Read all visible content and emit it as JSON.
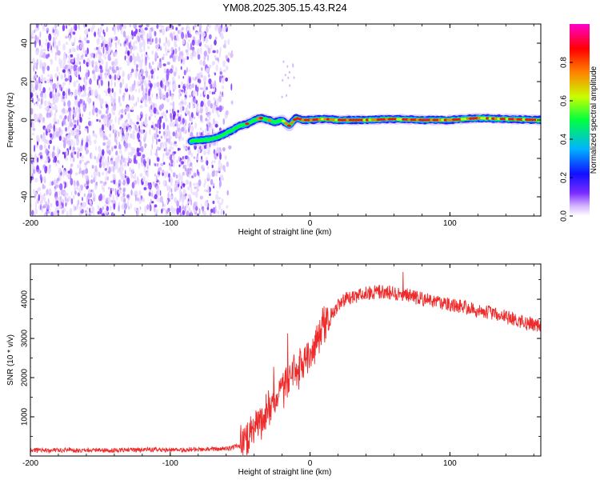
{
  "title": "YM08.2025.305.15.43.R24",
  "colors": {
    "snr_line": "#ee2b2b",
    "spectrum_colormap": [
      "#ffffff",
      "#d6b8ff",
      "#7b2cff",
      "#1010ff",
      "#00b4ff",
      "#00ff40",
      "#c8ff00",
      "#ff8000",
      "#ff0000",
      "#ff00cc"
    ]
  },
  "chart_data": [
    {
      "type": "heatmap",
      "name": "spectrogram",
      "title": "YM08.2025.305.15.43.R24",
      "xlabel": "Height of straight line (km)",
      "ylabel": "Frequency (Hz)",
      "xlim": [
        -200,
        165
      ],
      "ylim": [
        -50,
        50
      ],
      "x_ticks": [
        -200,
        -100,
        0,
        100
      ],
      "y_ticks": [
        -40,
        -20,
        0,
        20,
        40
      ],
      "x_tick_labels": [
        "-200",
        "-100",
        "0",
        "100"
      ],
      "y_tick_labels": [
        "-40",
        "-20",
        "0",
        "20",
        "40"
      ],
      "colorbar": {
        "label": "Normalized spectral amplitude",
        "range": [
          0.0,
          1.0
        ],
        "ticks": [
          0.0,
          0.2,
          0.4,
          0.6,
          0.8
        ],
        "tick_labels": [
          "0.0",
          "0.2",
          "0.4",
          "0.6",
          "0.8"
        ]
      },
      "noise_region": {
        "x_range": [
          -200,
          -55
        ],
        "freq_range": [
          -50,
          50
        ]
      },
      "signal_ridge": {
        "x": [
          -85,
          -70,
          -60,
          -50,
          -45,
          -40,
          -35,
          -30,
          -25,
          -20,
          -15,
          -10,
          -5,
          0,
          10,
          20,
          40,
          60,
          80,
          100,
          120,
          140,
          165
        ],
        "freq": [
          -11,
          -10,
          -7,
          -3,
          -2,
          0,
          1,
          0,
          -1,
          0,
          -3,
          1,
          0,
          0,
          0.5,
          0,
          0,
          0.5,
          0,
          0,
          1,
          0.5,
          0
        ]
      }
    },
    {
      "type": "line",
      "name": "snr",
      "xlabel": "Height of straight line (km)",
      "ylabel": "SNR (10 * v/v)",
      "xlim": [
        -200,
        165
      ],
      "ylim": [
        0,
        4900
      ],
      "x_ticks": [
        -200,
        -100,
        0,
        100
      ],
      "y_ticks": [
        1000,
        2000,
        3000,
        4000
      ],
      "x_tick_labels": [
        "-200",
        "-100",
        "0",
        "100"
      ],
      "y_tick_labels": [
        "1000",
        "2000",
        "3000",
        "4000"
      ],
      "series": [
        {
          "name": "SNR",
          "x": [
            -200,
            -150,
            -100,
            -60,
            -50,
            -45,
            -40,
            -35,
            -30,
            -25,
            -20,
            -15,
            -10,
            -5,
            0,
            5,
            10,
            15,
            20,
            25,
            30,
            40,
            50,
            60,
            70,
            80,
            90,
            100,
            110,
            120,
            130,
            140,
            150,
            160,
            165
          ],
          "y": [
            150,
            150,
            160,
            180,
            260,
            400,
            600,
            850,
            1150,
            1450,
            1700,
            1900,
            2150,
            2400,
            2600,
            2900,
            3300,
            3600,
            3850,
            4000,
            4050,
            4150,
            4200,
            4150,
            4100,
            4000,
            3950,
            3850,
            3800,
            3700,
            3650,
            3550,
            3450,
            3350,
            3300
          ]
        }
      ]
    }
  ]
}
